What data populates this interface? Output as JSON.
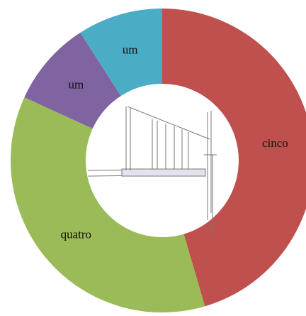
{
  "chart_data": {
    "type": "donut",
    "categories": [
      "cinco",
      "quatro",
      "um",
      "um"
    ],
    "values": [
      5,
      4,
      1,
      1
    ],
    "colors": [
      "#c0504d",
      "#9bbb59",
      "#8064a2",
      "#4bacc6"
    ]
  }
}
